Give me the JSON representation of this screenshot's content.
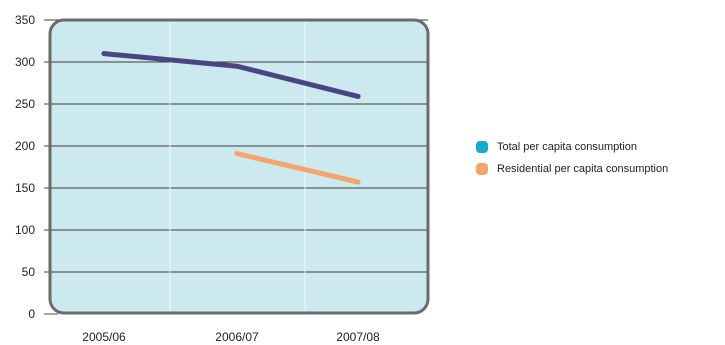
{
  "chart_data": {
    "type": "line",
    "categories": [
      "2005/06",
      "2006/07",
      "2007/08"
    ],
    "series": [
      {
        "name": "Total per capita consumption",
        "values": [
          310,
          295,
          259
        ],
        "color": "#4a4580",
        "swatch": "#1aa9cc"
      },
      {
        "name": "Residential per capita consumption",
        "values": [
          null,
          191,
          157
        ],
        "color": "#f5a46c",
        "swatch": "#f5a46c"
      }
    ],
    "ylim": [
      0,
      350
    ],
    "yticks": [
      0,
      50,
      100,
      150,
      200,
      250,
      300,
      350
    ],
    "grid": true,
    "legend": "right",
    "plot_background": "#cce9ef",
    "frame_color": "#6b6b6b"
  }
}
